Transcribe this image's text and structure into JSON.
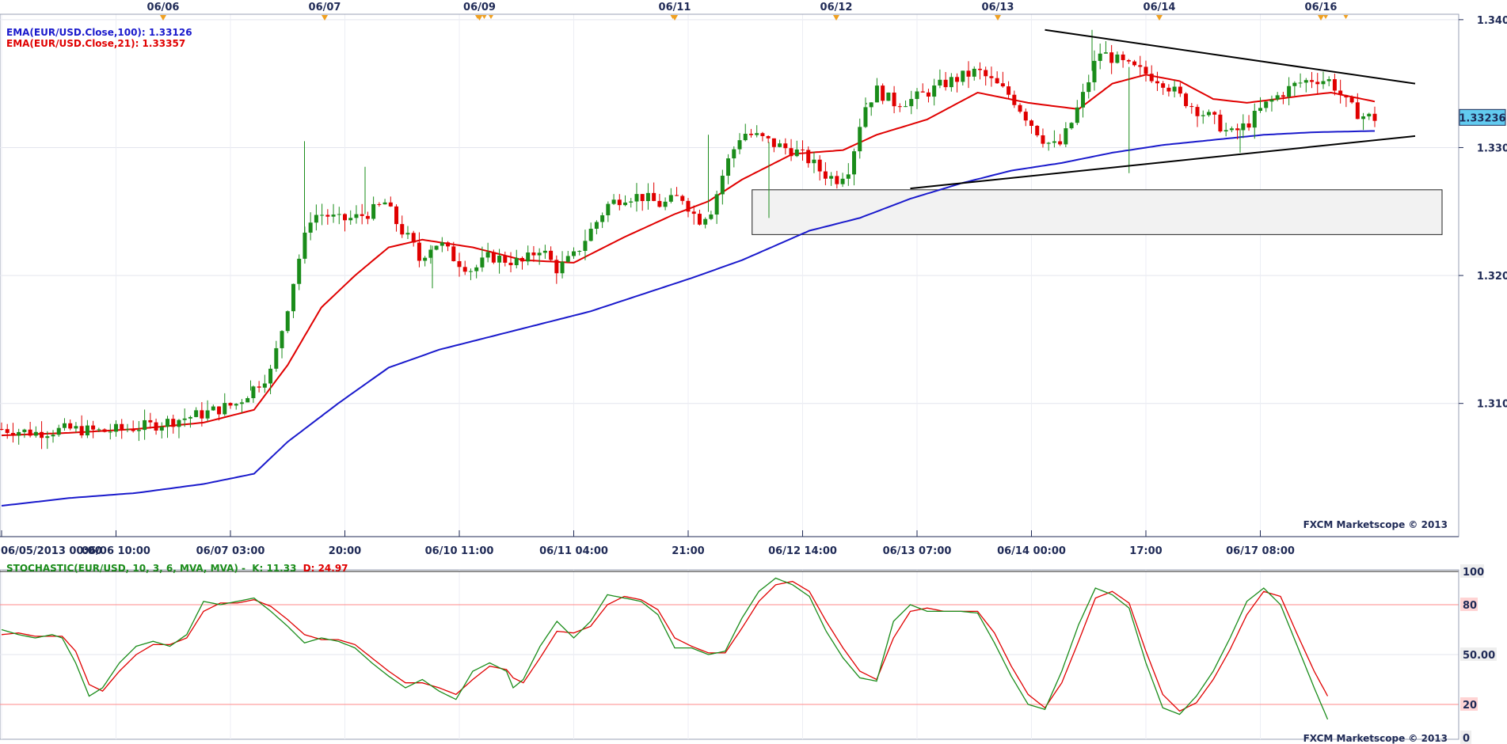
{
  "chart_data": [
    {
      "type": "candlestick",
      "instrument": "EUR/USD",
      "legend": [
        {
          "label": "EMA(EUR/USD.Close,100): 1.33126",
          "color": "#1a1acc"
        },
        {
          "label": "EMA(EUR/USD.Close,21): 1.33357",
          "color": "#e00000"
        }
      ],
      "top_date_labels": [
        "06/06",
        "06/07",
        "06/09",
        "06/11",
        "06/12",
        "06/13",
        "06/14",
        "06/16"
      ],
      "bottom_time_labels": [
        "06/05/2013 00:00",
        "06/06 10:00",
        "06/07 03:00",
        "20:00",
        "06/10 11:00",
        "06/11 04:00",
        "21:00",
        "06/12 14:00",
        "06/13 07:00",
        "06/14 00:00",
        "17:00",
        "06/17 08:00"
      ],
      "ylim": [
        1.3007,
        1.3403
      ],
      "y_ticks": [
        "1.3400",
        "1.3300",
        "1.3200",
        "1.3100"
      ],
      "current_price": "1.33236",
      "watermark": "FXCM Marketscope © 2013",
      "candle_count": 240,
      "price_path": [
        [
          0,
          1.308
        ],
        [
          10,
          1.3077
        ],
        [
          20,
          1.308
        ],
        [
          30,
          1.3078
        ],
        [
          45,
          1.3083
        ],
        [
          60,
          1.3092
        ],
        [
          70,
          1.31
        ],
        [
          76,
          1.3115
        ],
        [
          80,
          1.3125
        ],
        [
          84,
          1.3165
        ],
        [
          88,
          1.321
        ],
        [
          92,
          1.3247
        ],
        [
          96,
          1.3248
        ],
        [
          100,
          1.3243
        ],
        [
          105,
          1.3245
        ],
        [
          110,
          1.325
        ],
        [
          114,
          1.3257
        ],
        [
          118,
          1.3238
        ],
        [
          122,
          1.3225
        ],
        [
          124,
          1.3212
        ],
        [
          127,
          1.3222
        ],
        [
          130,
          1.3226
        ],
        [
          135,
          1.3212
        ],
        [
          140,
          1.3204
        ],
        [
          145,
          1.3215
        ],
        [
          150,
          1.3212
        ],
        [
          155,
          1.321
        ],
        [
          160,
          1.3222
        ],
        [
          165,
          1.3205
        ],
        [
          170,
          1.3215
        ],
        [
          175,
          1.3235
        ],
        [
          180,
          1.3255
        ],
        [
          185,
          1.3262
        ],
        [
          190,
          1.3262
        ],
        [
          196,
          1.3255
        ],
        [
          202,
          1.3262
        ],
        [
          207,
          1.3243
        ],
        [
          211,
          1.3252
        ],
        [
          215,
          1.3285
        ],
        [
          220,
          1.3312
        ],
        [
          225,
          1.3308
        ],
        [
          230,
          1.3302
        ],
        [
          236,
          1.3297
        ],
        [
          240,
          1.329
        ],
        [
          244,
          1.328
        ],
        [
          248,
          1.3275
        ],
        [
          252,
          1.3285
        ],
        [
          256,
          1.333
        ],
        [
          260,
          1.3345
        ],
        [
          265,
          1.3335
        ],
        [
          270,
          1.3337
        ],
        [
          275,
          1.3343
        ],
        [
          280,
          1.335
        ],
        [
          285,
          1.3355
        ],
        [
          290,
          1.336
        ],
        [
          295,
          1.335
        ],
        [
          300,
          1.334
        ],
        [
          305,
          1.3322
        ],
        [
          310,
          1.3305
        ],
        [
          314,
          1.33
        ],
        [
          318,
          1.332
        ],
        [
          322,
          1.3345
        ],
        [
          326,
          1.3375
        ],
        [
          330,
          1.337
        ],
        [
          335,
          1.3363
        ],
        [
          340,
          1.3358
        ],
        [
          345,
          1.3352
        ],
        [
          350,
          1.334
        ],
        [
          355,
          1.333
        ],
        [
          360,
          1.3322
        ],
        [
          365,
          1.331
        ],
        [
          370,
          1.3318
        ],
        [
          375,
          1.3332
        ],
        [
          380,
          1.3342
        ],
        [
          385,
          1.335
        ],
        [
          390,
          1.3354
        ],
        [
          395,
          1.3352
        ],
        [
          400,
          1.3333
        ],
        [
          404,
          1.3325
        ],
        [
          408,
          1.3323
        ]
      ],
      "ema21_path": [
        [
          0,
          1.3075
        ],
        [
          20,
          1.3077
        ],
        [
          40,
          1.308
        ],
        [
          60,
          1.3085
        ],
        [
          75,
          1.3095
        ],
        [
          85,
          1.313
        ],
        [
          95,
          1.3175
        ],
        [
          105,
          1.32
        ],
        [
          115,
          1.3222
        ],
        [
          125,
          1.3228
        ],
        [
          140,
          1.3222
        ],
        [
          155,
          1.3212
        ],
        [
          170,
          1.321
        ],
        [
          185,
          1.323
        ],
        [
          200,
          1.3248
        ],
        [
          210,
          1.3258
        ],
        [
          220,
          1.3275
        ],
        [
          235,
          1.3295
        ],
        [
          250,
          1.3298
        ],
        [
          260,
          1.331
        ],
        [
          275,
          1.3322
        ],
        [
          290,
          1.3343
        ],
        [
          305,
          1.3335
        ],
        [
          320,
          1.333
        ],
        [
          330,
          1.335
        ],
        [
          340,
          1.3357
        ],
        [
          350,
          1.3352
        ],
        [
          360,
          1.3338
        ],
        [
          370,
          1.3335
        ],
        [
          385,
          1.334
        ],
        [
          395,
          1.3343
        ],
        [
          408,
          1.3336
        ]
      ],
      "ema100_path": [
        [
          0,
          1.302
        ],
        [
          20,
          1.3026
        ],
        [
          40,
          1.303
        ],
        [
          60,
          1.3037
        ],
        [
          75,
          1.3045
        ],
        [
          85,
          1.307
        ],
        [
          100,
          1.31
        ],
        [
          115,
          1.3128
        ],
        [
          130,
          1.3142
        ],
        [
          145,
          1.3152
        ],
        [
          160,
          1.3162
        ],
        [
          175,
          1.3172
        ],
        [
          190,
          1.3185
        ],
        [
          205,
          1.3198
        ],
        [
          220,
          1.3212
        ],
        [
          240,
          1.3235
        ],
        [
          255,
          1.3245
        ],
        [
          270,
          1.326
        ],
        [
          285,
          1.3272
        ],
        [
          300,
          1.3282
        ],
        [
          315,
          1.3288
        ],
        [
          330,
          1.3296
        ],
        [
          345,
          1.3302
        ],
        [
          360,
          1.3306
        ],
        [
          375,
          1.331
        ],
        [
          390,
          1.3312
        ],
        [
          408,
          1.3313
        ]
      ],
      "trendlines": [
        {
          "name": "upper",
          "from": [
            310,
            1.3392
          ],
          "to": [
            420,
            1.335
          ]
        },
        {
          "name": "lower",
          "from": [
            270,
            1.3268
          ],
          "to": [
            420,
            1.3309
          ]
        }
      ],
      "zone": {
        "from_x": 223,
        "to_x": 428,
        "y_low": 1.3232,
        "y_high": 1.3267
      }
    },
    {
      "type": "line",
      "title": "STOCHASTIC(EUR/USD, 10, 3, 6, MVA, MVA) -",
      "k_label": "K: 11.33",
      "d_label": "D: 24.97",
      "ylim": [
        0,
        100
      ],
      "y_ticks": [
        "100",
        "80",
        "50.00",
        "20",
        "0"
      ],
      "levels": [
        80,
        20
      ],
      "watermark": "FXCM Marketscope © 2013",
      "k": [
        [
          0,
          65
        ],
        [
          5,
          62
        ],
        [
          10,
          60
        ],
        [
          15,
          62
        ],
        [
          18,
          60
        ],
        [
          22,
          45
        ],
        [
          26,
          25
        ],
        [
          30,
          30
        ],
        [
          35,
          45
        ],
        [
          40,
          55
        ],
        [
          45,
          58
        ],
        [
          50,
          55
        ],
        [
          55,
          62
        ],
        [
          60,
          82
        ],
        [
          65,
          80
        ],
        [
          70,
          82
        ],
        [
          75,
          84
        ],
        [
          80,
          76
        ],
        [
          85,
          67
        ],
        [
          90,
          57
        ],
        [
          95,
          60
        ],
        [
          100,
          58
        ],
        [
          105,
          54
        ],
        [
          110,
          45
        ],
        [
          115,
          37
        ],
        [
          120,
          30
        ],
        [
          125,
          35
        ],
        [
          130,
          28
        ],
        [
          135,
          23
        ],
        [
          140,
          40
        ],
        [
          145,
          45
        ],
        [
          150,
          40
        ],
        [
          152,
          30
        ],
        [
          155,
          35
        ],
        [
          160,
          55
        ],
        [
          165,
          70
        ],
        [
          170,
          60
        ],
        [
          175,
          70
        ],
        [
          180,
          86
        ],
        [
          185,
          84
        ],
        [
          190,
          82
        ],
        [
          195,
          74
        ],
        [
          200,
          54
        ],
        [
          205,
          54
        ],
        [
          210,
          50
        ],
        [
          215,
          52
        ],
        [
          220,
          72
        ],
        [
          225,
          88
        ],
        [
          230,
          96
        ],
        [
          235,
          92
        ],
        [
          240,
          85
        ],
        [
          245,
          64
        ],
        [
          250,
          48
        ],
        [
          255,
          36
        ],
        [
          260,
          34
        ],
        [
          265,
          70
        ],
        [
          270,
          80
        ],
        [
          275,
          76
        ],
        [
          280,
          76
        ],
        [
          285,
          76
        ],
        [
          290,
          75
        ],
        [
          295,
          57
        ],
        [
          300,
          37
        ],
        [
          305,
          20
        ],
        [
          310,
          17
        ],
        [
          315,
          40
        ],
        [
          320,
          68
        ],
        [
          325,
          90
        ],
        [
          330,
          86
        ],
        [
          335,
          78
        ],
        [
          340,
          45
        ],
        [
          345,
          18
        ],
        [
          350,
          14
        ],
        [
          355,
          25
        ],
        [
          360,
          40
        ],
        [
          365,
          60
        ],
        [
          370,
          82
        ],
        [
          375,
          90
        ],
        [
          380,
          80
        ],
        [
          385,
          55
        ],
        [
          390,
          30
        ],
        [
          394,
          11
        ]
      ],
      "d": [
        [
          0,
          62
        ],
        [
          5,
          63
        ],
        [
          10,
          61
        ],
        [
          15,
          61
        ],
        [
          18,
          61
        ],
        [
          22,
          52
        ],
        [
          26,
          32
        ],
        [
          30,
          28
        ],
        [
          35,
          40
        ],
        [
          40,
          50
        ],
        [
          45,
          56
        ],
        [
          50,
          56
        ],
        [
          55,
          60
        ],
        [
          60,
          76
        ],
        [
          65,
          81
        ],
        [
          70,
          81
        ],
        [
          75,
          83
        ],
        [
          80,
          79
        ],
        [
          85,
          71
        ],
        [
          90,
          62
        ],
        [
          95,
          59
        ],
        [
          100,
          59
        ],
        [
          105,
          56
        ],
        [
          110,
          48
        ],
        [
          115,
          40
        ],
        [
          120,
          33
        ],
        [
          125,
          33
        ],
        [
          130,
          30
        ],
        [
          135,
          26
        ],
        [
          140,
          35
        ],
        [
          145,
          43
        ],
        [
          150,
          41
        ],
        [
          152,
          36
        ],
        [
          155,
          33
        ],
        [
          160,
          48
        ],
        [
          165,
          64
        ],
        [
          170,
          63
        ],
        [
          175,
          67
        ],
        [
          180,
          80
        ],
        [
          185,
          85
        ],
        [
          190,
          83
        ],
        [
          195,
          77
        ],
        [
          200,
          60
        ],
        [
          205,
          55
        ],
        [
          210,
          51
        ],
        [
          215,
          51
        ],
        [
          220,
          66
        ],
        [
          225,
          82
        ],
        [
          230,
          92
        ],
        [
          235,
          94
        ],
        [
          240,
          88
        ],
        [
          245,
          70
        ],
        [
          250,
          54
        ],
        [
          255,
          40
        ],
        [
          260,
          35
        ],
        [
          265,
          60
        ],
        [
          270,
          76
        ],
        [
          275,
          78
        ],
        [
          280,
          76
        ],
        [
          285,
          76
        ],
        [
          290,
          76
        ],
        [
          295,
          63
        ],
        [
          300,
          43
        ],
        [
          305,
          26
        ],
        [
          310,
          18
        ],
        [
          315,
          33
        ],
        [
          320,
          58
        ],
        [
          325,
          84
        ],
        [
          330,
          88
        ],
        [
          335,
          81
        ],
        [
          340,
          52
        ],
        [
          345,
          26
        ],
        [
          350,
          16
        ],
        [
          355,
          21
        ],
        [
          360,
          35
        ],
        [
          365,
          53
        ],
        [
          370,
          74
        ],
        [
          375,
          88
        ],
        [
          380,
          85
        ],
        [
          385,
          62
        ],
        [
          390,
          40
        ],
        [
          394,
          25
        ]
      ]
    }
  ]
}
